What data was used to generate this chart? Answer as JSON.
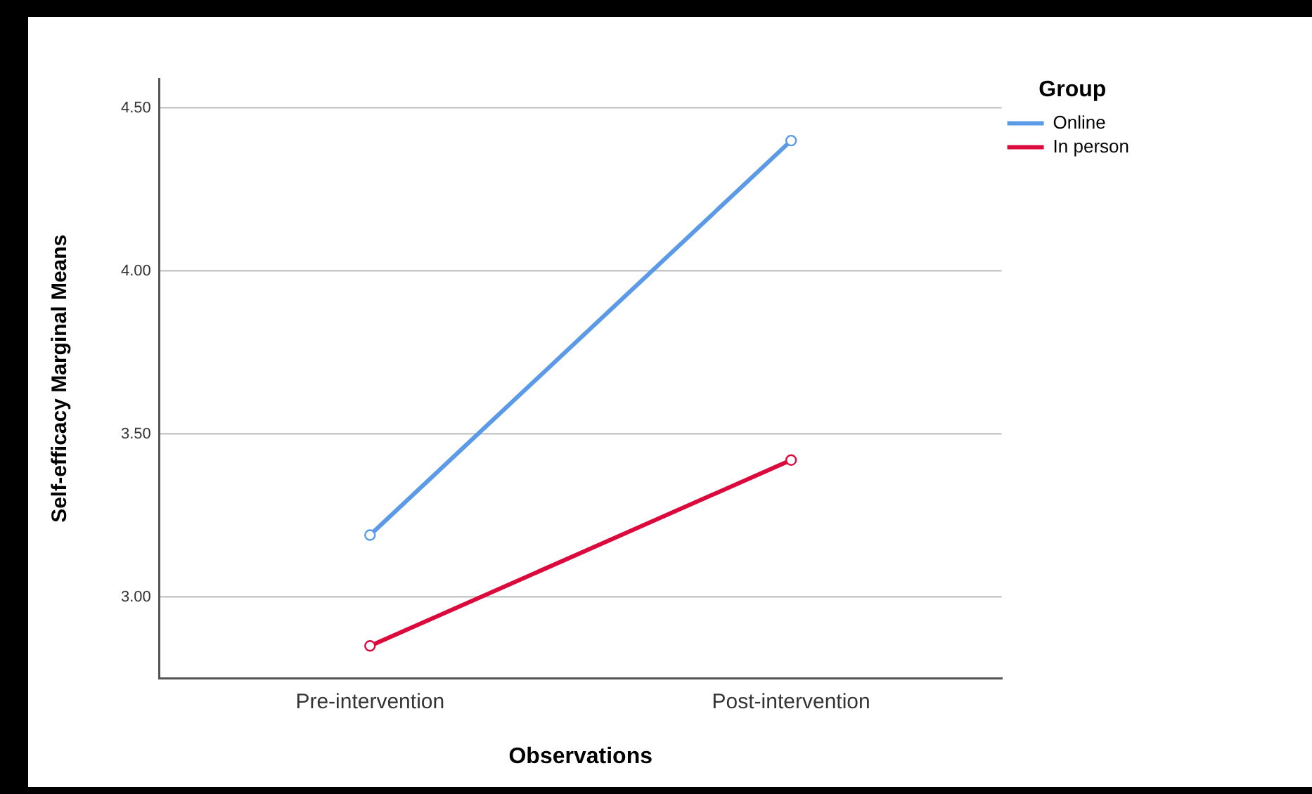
{
  "chart_data": {
    "type": "line",
    "xlabel": "Observations",
    "ylabel": "Self-efficacy Marginal Means",
    "legend_title": "Group",
    "categories": [
      "Pre-intervention",
      "Post-intervention"
    ],
    "series": [
      {
        "name": "Online",
        "color": "#5b9ae6",
        "values": [
          3.19,
          4.4
        ]
      },
      {
        "name": "In person",
        "color": "#dc0a3c",
        "values": [
          2.85,
          3.42
        ]
      }
    ],
    "ylim": [
      2.75,
      4.59
    ],
    "yticks": [
      {
        "value": 3,
        "label": "3.00"
      },
      {
        "value": 3.5,
        "label": "3.50"
      },
      {
        "value": 4,
        "label": "4.00"
      },
      {
        "value": 4.5,
        "label": "4.50"
      }
    ],
    "grid": "y",
    "legend": "top right",
    "marker": "circle",
    "line_style": "solid"
  }
}
